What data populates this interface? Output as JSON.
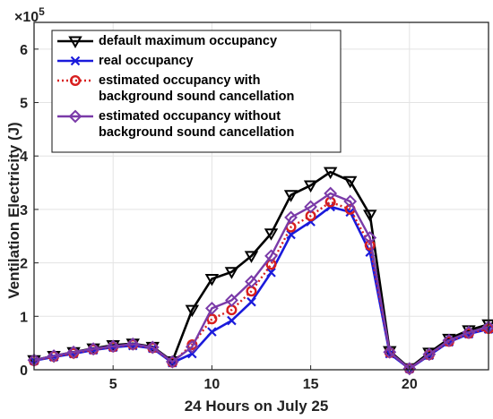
{
  "chart_data": {
    "type": "line",
    "xlabel": "24 Hours on July 25",
    "ylabel": "Ventilation Electricity (J)",
    "y_exponent_label": "×10",
    "y_exponent_power": "5",
    "xlim": [
      1,
      24
    ],
    "ylim": [
      0,
      6.5
    ],
    "y_scale_note": "values ×10^5",
    "xticks": [
      5,
      10,
      15,
      20
    ],
    "yticks": [
      0,
      1,
      2,
      3,
      4,
      5,
      6
    ],
    "grid": true,
    "legend_position": "top-left",
    "x": [
      1,
      2,
      3,
      4,
      5,
      6,
      7,
      8,
      9,
      10,
      11,
      12,
      13,
      14,
      15,
      16,
      17,
      18,
      19,
      20,
      21,
      22,
      23,
      24
    ],
    "series": [
      {
        "name": "default maximum occupancy",
        "color": "#000000",
        "marker": "triangle-down",
        "values": [
          0.18,
          0.26,
          0.33,
          0.4,
          0.46,
          0.49,
          0.43,
          0.16,
          1.12,
          1.7,
          1.83,
          2.13,
          2.55,
          3.27,
          3.45,
          3.7,
          3.53,
          2.9,
          0.35,
          0.03,
          0.32,
          0.58,
          0.74,
          0.85
        ]
      },
      {
        "name": "real occupancy",
        "color": "#1a1adb",
        "marker": "x",
        "values": [
          0.17,
          0.24,
          0.3,
          0.37,
          0.42,
          0.45,
          0.4,
          0.13,
          0.3,
          0.71,
          0.92,
          1.27,
          1.82,
          2.53,
          2.77,
          3.05,
          2.95,
          2.2,
          0.3,
          0.02,
          0.27,
          0.52,
          0.67,
          0.76
        ]
      },
      {
        "name": "estimated occupancy with background sound cancellation",
        "color": "#d81e1e",
        "marker": "circle",
        "values": [
          0.17,
          0.25,
          0.31,
          0.38,
          0.43,
          0.47,
          0.41,
          0.14,
          0.47,
          0.95,
          1.12,
          1.47,
          1.97,
          2.67,
          2.88,
          3.14,
          3.0,
          2.33,
          0.32,
          0.02,
          0.28,
          0.53,
          0.68,
          0.77
        ]
      },
      {
        "name": "estimated occupancy without background sound cancellation",
        "color": "#7a3aa8",
        "marker": "diamond",
        "values": [
          0.18,
          0.26,
          0.33,
          0.39,
          0.44,
          0.48,
          0.42,
          0.15,
          0.43,
          1.15,
          1.3,
          1.65,
          2.13,
          2.85,
          3.05,
          3.3,
          3.15,
          2.47,
          0.33,
          0.02,
          0.29,
          0.55,
          0.7,
          0.8
        ]
      }
    ],
    "legend_lines": [
      [
        "default maximum occupancy"
      ],
      [
        "real occupancy"
      ],
      [
        "estimated occupancy with",
        "background sound cancellation"
      ],
      [
        "estimated occupancy without",
        "background sound cancellation"
      ]
    ]
  }
}
